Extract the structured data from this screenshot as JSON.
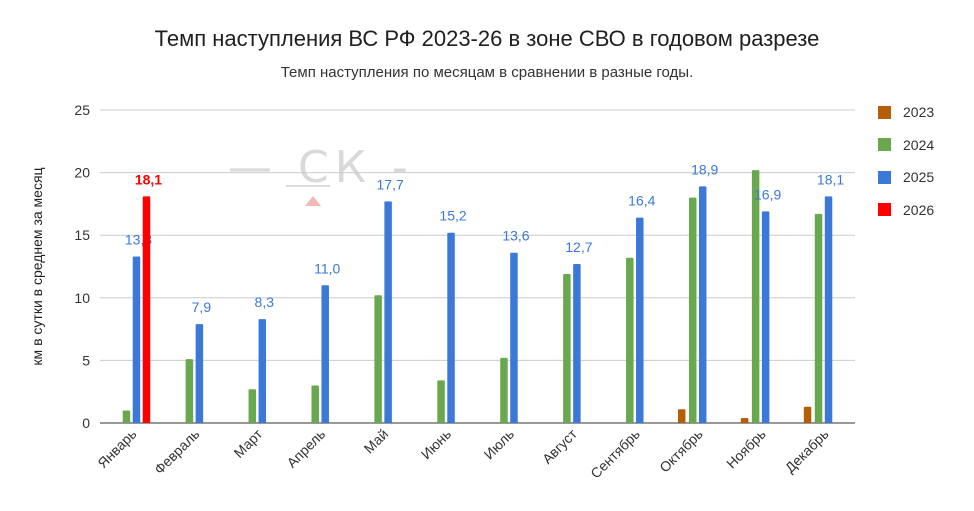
{
  "title": "Темп наступления ВС РФ 2023-26 в зоне СВО в годовом разрезе",
  "subtitle": "Темп наступления по месяцам в сравнении в разные годы.",
  "watermark": "— СК -",
  "chart_data": {
    "type": "bar",
    "ylabel": "км в сутки в среднем за месяц",
    "ylim": [
      0,
      25
    ],
    "yticks": [
      "0",
      "5",
      "10",
      "15",
      "20",
      "25"
    ],
    "grid": true,
    "legend_position": "right",
    "categories": [
      "Январь",
      "Февраль",
      "Март",
      "Апрель",
      "Май",
      "Июнь",
      "Июль",
      "Август",
      "Сентябрь",
      "Октябрь",
      "Ноябрь",
      "Декабрь"
    ],
    "series": [
      {
        "name": "2023",
        "color": "#b45f06",
        "values": [
          null,
          null,
          null,
          null,
          null,
          null,
          null,
          null,
          null,
          1.1,
          0.4,
          1.3
        ],
        "labels": [
          "",
          "",
          "",
          "",
          "",
          "",
          "",
          "",
          "",
          "",
          "",
          ""
        ]
      },
      {
        "name": "2024",
        "color": "#6aa84f",
        "values": [
          1.0,
          5.1,
          2.7,
          3.0,
          10.2,
          3.4,
          5.2,
          11.9,
          13.2,
          18.0,
          20.2,
          16.7
        ],
        "labels": [
          "",
          "",
          "",
          "",
          "",
          "",
          "",
          "",
          "",
          "",
          "",
          ""
        ]
      },
      {
        "name": "2025",
        "color": "#3c78d8",
        "values": [
          13.3,
          7.9,
          8.3,
          11.0,
          17.7,
          15.2,
          13.6,
          12.7,
          16.4,
          18.9,
          16.9,
          18.1
        ],
        "labels": [
          "13,3",
          "7,9",
          "8,3",
          "11,0",
          "17,7",
          "15,2",
          "13,6",
          "12,7",
          "16,4",
          "18,9",
          "16,9",
          "18,1"
        ]
      },
      {
        "name": "2026",
        "color": "#ff0000",
        "values": [
          18.1,
          null,
          null,
          null,
          null,
          null,
          null,
          null,
          null,
          null,
          null,
          null
        ],
        "labels": [
          "18,1",
          "",
          "",
          "",
          "",
          "",
          "",
          "",
          "",
          "",
          "",
          ""
        ]
      }
    ]
  }
}
